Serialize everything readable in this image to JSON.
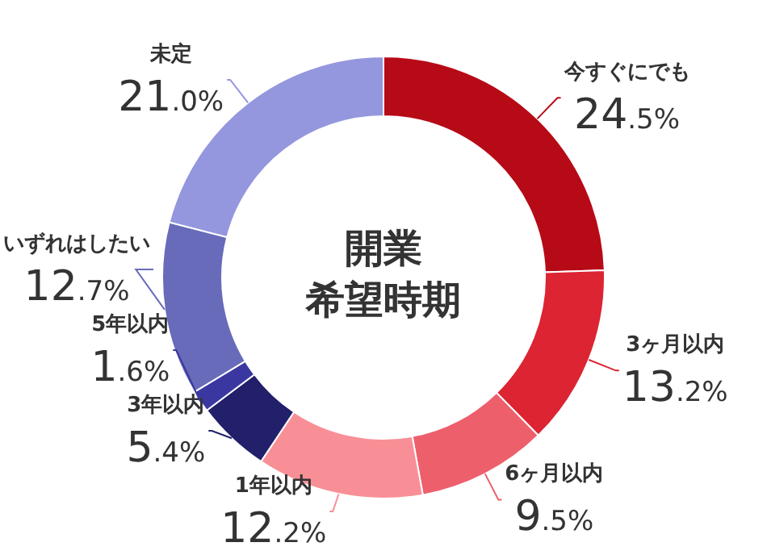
{
  "chart_data": {
    "type": "donut",
    "title": "開業",
    "subtitle": "希望時期",
    "categories": [
      "今すぐにでも",
      "3ヶ月以内",
      "6ヶ月以内",
      "1年以内",
      "3年以内",
      "5年以内",
      "いずれはしたい",
      "未定"
    ],
    "values": [
      24.5,
      13.2,
      9.5,
      12.2,
      5.4,
      1.6,
      12.7,
      21.0
    ],
    "colors": [
      "#b70a17",
      "#dc2433",
      "#ee5f6c",
      "#f98f96",
      "#221f6b",
      "#3a38a0",
      "#676bb9",
      "#9496de"
    ],
    "value_labels": [
      "24.5%",
      "13.2%",
      "9.5%",
      "12.2%",
      "5.4%",
      "1.6%",
      "12.7%",
      "21.0%"
    ],
    "legend": false
  }
}
